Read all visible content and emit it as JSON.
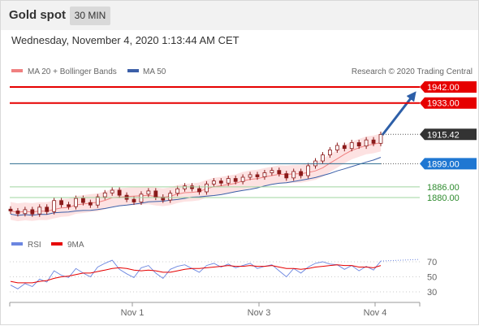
{
  "header": {
    "title": "Gold spot",
    "timeframe": "30 MIN",
    "datetime": "Wednesday, November 4, 2020 1:13:44 AM CET"
  },
  "legend": {
    "ma20": "MA 20 + Bollinger Bands",
    "ma50": "MA 50",
    "credit": "Research © 2020 Trading Central",
    "rsi": "RSI",
    "ma9": "9MA"
  },
  "colors": {
    "resistance": "#e60000",
    "support": "#1f77d2",
    "support_green": "#2e8b2e",
    "ma20": "#f08080",
    "ma50": "#3b5fa8",
    "bollinger_fill": "#fde2e2",
    "candle": "#8b1a1a",
    "arrow": "#2d5fa8",
    "rsi": "#6b86e0",
    "ma9": "#e60000",
    "current": "#333333"
  },
  "chart_data": {
    "type": "line",
    "ohlc_range_note": "",
    "price_axis": {
      "min": 1863,
      "max": 1948
    },
    "x_labels": [
      "Nov 1",
      "Nov 3",
      "Nov 4"
    ],
    "close_series": [
      1872.5,
      1871.0,
      1873.2,
      1870.8,
      1874.6,
      1872.1,
      1878.3,
      1876.0,
      1874.9,
      1879.5,
      1877.2,
      1875.8,
      1880.4,
      1882.6,
      1884.1,
      1881.3,
      1879.0,
      1877.5,
      1881.9,
      1883.7,
      1880.2,
      1878.6,
      1882.4,
      1884.9,
      1886.5,
      1885.0,
      1883.2,
      1887.6,
      1889.3,
      1888.1,
      1890.7,
      1889.0,
      1891.4,
      1892.8,
      1891.6,
      1893.9,
      1895.2,
      1893.4,
      1891.0,
      1894.6,
      1892.3,
      1897.8,
      1900.5,
      1903.9,
      1906.7,
      1909.2,
      1907.5,
      1910.8,
      1908.9,
      1912.3,
      1910.4,
      1915.4
    ],
    "levels": [
      {
        "label": "1942.00",
        "value": 1942.0,
        "kind": "resistance",
        "boxed": true
      },
      {
        "label": "1933.00",
        "value": 1933.0,
        "kind": "resistance",
        "boxed": true
      },
      {
        "label": "1915.42",
        "value": 1915.42,
        "kind": "current",
        "boxed": true
      },
      {
        "label": "1899.00",
        "value": 1899.0,
        "kind": "support",
        "boxed": true
      },
      {
        "label": "1886.00",
        "value": 1886.0,
        "kind": "support_green",
        "boxed": false
      },
      {
        "label": "1880.00",
        "value": 1880.0,
        "kind": "support_green",
        "boxed": false
      }
    ],
    "rsi": {
      "ticks": [
        "70",
        "50",
        "30"
      ],
      "tick_values": [
        70,
        50,
        30
      ],
      "range": [
        20,
        82
      ],
      "values": [
        39,
        34,
        41,
        37,
        47,
        43,
        58,
        52,
        49,
        61,
        55,
        50,
        63,
        68,
        72,
        60,
        54,
        49,
        62,
        65,
        55,
        48,
        60,
        64,
        66,
        61,
        56,
        65,
        68,
        63,
        67,
        62,
        65,
        68,
        61,
        64,
        66,
        58,
        50,
        61,
        55,
        63,
        68,
        70,
        67,
        66,
        60,
        65,
        58,
        64,
        59,
        71
      ],
      "ma9": [
        44,
        42,
        42,
        42,
        44,
        45,
        48,
        50,
        51,
        53,
        55,
        55,
        57,
        59,
        61,
        62,
        61,
        59,
        58,
        59,
        58,
        56,
        56,
        58,
        60,
        61,
        61,
        62,
        63,
        64,
        65,
        64,
        64,
        65,
        64,
        64,
        65,
        63,
        61,
        61,
        60,
        61,
        63,
        64,
        65,
        66,
        65,
        65,
        63,
        63,
        62,
        65
      ]
    }
  }
}
